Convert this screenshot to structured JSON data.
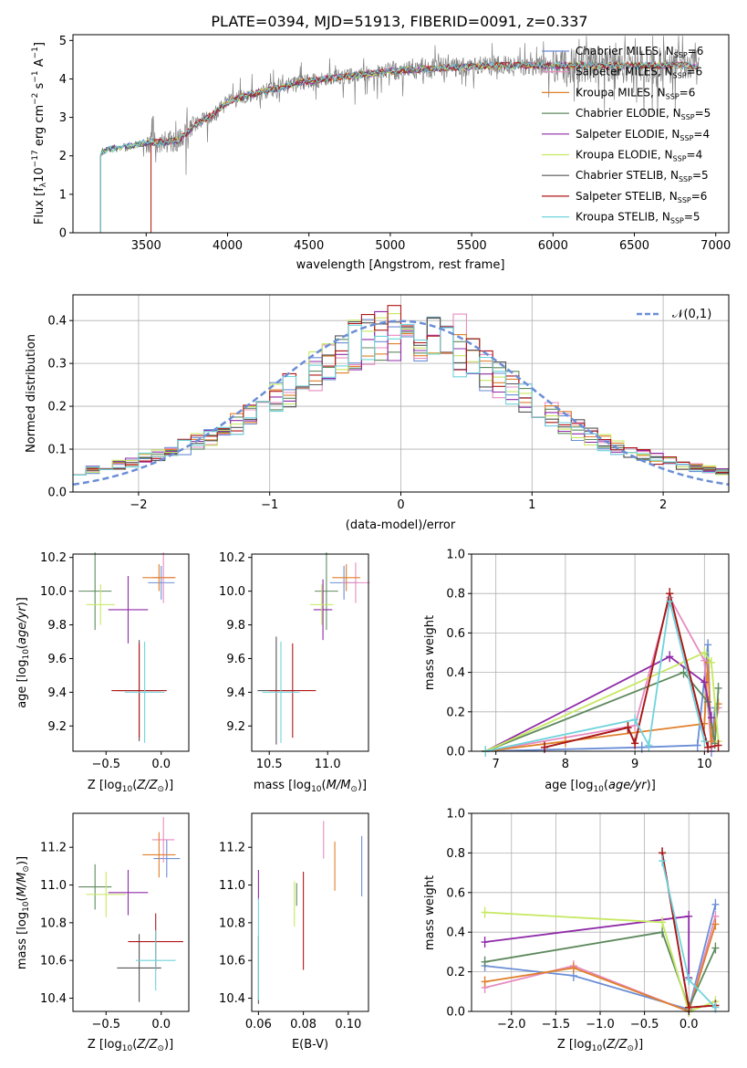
{
  "figure_title": "PLATE=0394, MJD=51913, FIBERID=0091, z=0.337",
  "models": [
    {
      "name": "Chabrier MILES",
      "nssp": "6",
      "color": "#6b8ed6"
    },
    {
      "name": "Salpeter MILES",
      "nssp": "6",
      "color": "#e88bc0"
    },
    {
      "name": "Kroupa MILES",
      "nssp": "6",
      "color": "#e07f2a"
    },
    {
      "name": "Chabrier ELODIE",
      "nssp": "5",
      "color": "#5e8a5e"
    },
    {
      "name": "Salpeter ELODIE",
      "nssp": "4",
      "color": "#8f2aa8"
    },
    {
      "name": "Kroupa ELODIE",
      "nssp": "4",
      "color": "#c6e860"
    },
    {
      "name": "Chabrier STELIB",
      "nssp": "5",
      "color": "#555555"
    },
    {
      "name": "Salpeter STELIB",
      "nssp": "6",
      "color": "#b01515"
    },
    {
      "name": "Kroupa STELIB",
      "nssp": "5",
      "color": "#6fd3dc"
    }
  ],
  "chart_data": [
    {
      "id": "spectrum",
      "type": "line",
      "xlabel": "wavelength [Angstrom, rest frame]",
      "ylabel": "Flux [f_λ 10^-17 erg cm^-2 s^-1 A^-1]",
      "xlim": [
        3050,
        7080
      ],
      "ylim": [
        0,
        5.15
      ],
      "xticks": [
        3500,
        4000,
        4500,
        5000,
        5500,
        6000,
        6500,
        7000
      ],
      "yticks": [
        0,
        1,
        2,
        3,
        4,
        5
      ],
      "data_color": "#808080",
      "continuum": {
        "x": [
          3220,
          3300,
          3400,
          3500,
          3600,
          3700,
          3800,
          3900,
          4000,
          4100,
          4200,
          4300,
          4400,
          4500,
          4600,
          4700,
          4800,
          4900,
          5000,
          5200,
          5400,
          5600,
          5800,
          6000,
          6200,
          6400,
          6600,
          6800,
          6900
        ],
        "y": [
          2.1,
          2.2,
          2.25,
          2.35,
          2.35,
          2.4,
          2.8,
          3.05,
          3.4,
          3.55,
          3.65,
          3.75,
          3.85,
          3.95,
          4.0,
          4.05,
          4.1,
          4.15,
          4.2,
          4.25,
          4.3,
          4.35,
          4.35,
          4.35,
          4.35,
          4.35,
          4.35,
          4.35,
          4.3
        ]
      },
      "legend_position": "upper right"
    },
    {
      "id": "residuals",
      "type": "histogram",
      "xlabel": "(data-model)/error",
      "ylabel": "Normed distribution",
      "xlim": [
        -2.5,
        2.5
      ],
      "ylim": [
        0,
        0.46
      ],
      "xticks": [
        -2,
        -1,
        0,
        1,
        2
      ],
      "yticks": [
        0.0,
        0.1,
        0.2,
        0.3,
        0.4
      ],
      "grid": true,
      "bin_edges_start": -2.5,
      "bin_width": 0.1,
      "reference": {
        "label": "𝒩(0,1)",
        "color": "#6b8ed6",
        "style": "dashed"
      },
      "legend_position": "upper right"
    },
    {
      "id": "age_vs_Z",
      "type": "errorbar",
      "xlabel": "Z [log10(Z/Z⊙)]",
      "ylabel": "age [log10(age/yr)]",
      "xlim": [
        -0.8,
        0.25
      ],
      "ylim": [
        9.05,
        10.22
      ],
      "xticks": [
        -0.5,
        0.0
      ],
      "yticks": [
        9.2,
        9.4,
        9.6,
        9.8,
        10.0,
        10.2
      ],
      "points": [
        {
          "model": 0,
          "x": 0.0,
          "y": 10.05,
          "xerr": 0.12,
          "yerr": 0.1
        },
        {
          "model": 1,
          "x": 0.02,
          "y": 10.08,
          "xerr": 0.1,
          "yerr": 0.15
        },
        {
          "model": 2,
          "x": -0.02,
          "y": 10.08,
          "xerr": 0.15,
          "yerr": 0.08
        },
        {
          "model": 3,
          "x": -0.6,
          "y": 10.0,
          "xerr": 0.15,
          "yerr": 0.23
        },
        {
          "model": 4,
          "x": -0.3,
          "y": 9.89,
          "xerr": 0.18,
          "yerr": 0.2
        },
        {
          "model": 5,
          "x": -0.55,
          "y": 9.92,
          "xerr": 0.13,
          "yerr": 0.12
        },
        {
          "model": 6,
          "x": -0.2,
          "y": 9.41,
          "xerr": 0.2,
          "yerr": 0.3
        },
        {
          "model": 7,
          "x": -0.2,
          "y": 9.41,
          "xerr": 0.25,
          "yerr": 0.28
        },
        {
          "model": 8,
          "x": -0.15,
          "y": 9.4,
          "xerr": 0.18,
          "yerr": 0.3
        }
      ]
    },
    {
      "id": "age_vs_mass",
      "type": "errorbar",
      "xlabel": "mass [log10(M/M⊙)]",
      "ylabel": "",
      "xlim": [
        10.35,
        11.35
      ],
      "ylim": [
        9.05,
        10.22
      ],
      "xticks": [
        10.5,
        11.0
      ],
      "yticks": [
        9.2,
        9.4,
        9.6,
        9.8,
        10.0,
        10.2
      ],
      "points": [
        {
          "model": 0,
          "x": 11.14,
          "y": 10.05,
          "xerr": 0.12,
          "yerr": 0.1
        },
        {
          "model": 1,
          "x": 11.24,
          "y": 10.05,
          "xerr": 0.12,
          "yerr": 0.12
        },
        {
          "model": 2,
          "x": 11.16,
          "y": 10.08,
          "xerr": 0.12,
          "yerr": 0.08
        },
        {
          "model": 3,
          "x": 10.99,
          "y": 10.0,
          "xerr": 0.1,
          "yerr": 0.23
        },
        {
          "model": 4,
          "x": 10.96,
          "y": 9.89,
          "xerr": 0.08,
          "yerr": 0.18
        },
        {
          "model": 5,
          "x": 10.95,
          "y": 9.92,
          "xerr": 0.1,
          "yerr": 0.12
        },
        {
          "model": 6,
          "x": 10.56,
          "y": 9.41,
          "xerr": 0.16,
          "yerr": 0.32
        },
        {
          "model": 7,
          "x": 10.7,
          "y": 9.41,
          "xerr": 0.2,
          "yerr": 0.28
        },
        {
          "model": 8,
          "x": 10.6,
          "y": 9.4,
          "xerr": 0.16,
          "yerr": 0.3
        }
      ]
    },
    {
      "id": "mass_weight_vs_age",
      "type": "line",
      "xlabel": "age [log10(age/yr)]",
      "ylabel": "mass weight",
      "xlim": [
        6.65,
        10.35
      ],
      "ylim": [
        0,
        1
      ],
      "xticks": [
        7,
        8,
        9,
        10
      ],
      "yticks": [
        0.0,
        0.2,
        0.4,
        0.6,
        0.8,
        1.0
      ],
      "grid": true,
      "series": [
        {
          "model": 0,
          "x": [
            6.85,
            9.1,
            9.9,
            10.05,
            10.1,
            10.15
          ],
          "y": [
            0.0,
            0.02,
            0.03,
            0.54,
            0.0,
            0.22
          ]
        },
        {
          "model": 1,
          "x": [
            6.85,
            9.0,
            9.5,
            10.0,
            10.1,
            10.2
          ],
          "y": [
            0.0,
            0.13,
            0.78,
            0.46,
            0.02,
            0.22
          ]
        },
        {
          "model": 2,
          "x": [
            6.85,
            8.0,
            10.0,
            10.05,
            10.1,
            10.2
          ],
          "y": [
            0.0,
            0.05,
            0.14,
            0.45,
            0.05,
            0.24
          ]
        },
        {
          "model": 3,
          "x": [
            6.85,
            9.7,
            10.05,
            10.15,
            10.2
          ],
          "y": [
            0.0,
            0.4,
            0.25,
            0.04,
            0.32
          ]
        },
        {
          "model": 4,
          "x": [
            6.85,
            9.5,
            10.0,
            10.1
          ],
          "y": [
            0.0,
            0.48,
            0.35,
            0.17
          ]
        },
        {
          "model": 5,
          "x": [
            6.85,
            10.0,
            10.1,
            10.2
          ],
          "y": [
            0.0,
            0.5,
            0.45,
            0.05
          ]
        },
        {
          "model": 6,
          "x": [
            7.7,
            8.9,
            9.0,
            9.5,
            10.05
          ],
          "y": [
            0.02,
            0.12,
            0.04,
            0.8,
            0.02
          ]
        },
        {
          "model": 7,
          "x": [
            7.7,
            8.9,
            9.0,
            9.5,
            10.05,
            10.2
          ],
          "y": [
            0.02,
            0.12,
            0.04,
            0.8,
            0.02,
            0.03
          ]
        },
        {
          "model": 8,
          "x": [
            6.85,
            9.0,
            9.2,
            9.5,
            10.0
          ],
          "y": [
            0.0,
            0.16,
            0.03,
            0.76,
            0.05
          ]
        }
      ]
    },
    {
      "id": "mass_vs_Z",
      "type": "errorbar",
      "xlabel": "Z [log10(Z/Z⊙)]",
      "ylabel": "mass [log10(M/M⊙)]",
      "xlim": [
        -0.8,
        0.25
      ],
      "ylim": [
        10.33,
        11.38
      ],
      "xticks": [
        -0.5,
        0.0
      ],
      "yticks": [
        10.4,
        10.6,
        10.8,
        11.0,
        11.2
      ],
      "points": [
        {
          "model": 0,
          "x": 0.05,
          "y": 11.14,
          "xerr": 0.12,
          "yerr": 0.1
        },
        {
          "model": 1,
          "x": 0.02,
          "y": 11.24,
          "xerr": 0.1,
          "yerr": 0.12
        },
        {
          "model": 2,
          "x": -0.02,
          "y": 11.16,
          "xerr": 0.15,
          "yerr": 0.12
        },
        {
          "model": 3,
          "x": -0.6,
          "y": 10.99,
          "xerr": 0.15,
          "yerr": 0.12
        },
        {
          "model": 4,
          "x": -0.3,
          "y": 10.96,
          "xerr": 0.18,
          "yerr": 0.12
        },
        {
          "model": 5,
          "x": -0.5,
          "y": 10.95,
          "xerr": 0.18,
          "yerr": 0.12
        },
        {
          "model": 6,
          "x": -0.2,
          "y": 10.56,
          "xerr": 0.2,
          "yerr": 0.18
        },
        {
          "model": 7,
          "x": -0.05,
          "y": 10.7,
          "xerr": 0.25,
          "yerr": 0.15
        },
        {
          "model": 8,
          "x": -0.05,
          "y": 10.6,
          "xerr": 0.18,
          "yerr": 0.16
        }
      ]
    },
    {
      "id": "mass_vs_ebv",
      "type": "errorbar",
      "xlabel": "E(B-V)",
      "ylabel": "",
      "xlim": [
        0.057,
        0.109
      ],
      "ylim": [
        10.33,
        11.38
      ],
      "xticks": [
        0.06,
        0.08,
        0.1
      ],
      "yticks": [
        10.4,
        10.6,
        10.8,
        11.0,
        11.2
      ],
      "points": [
        {
          "model": 0,
          "x": 0.106,
          "y": 11.1,
          "xerr": 0,
          "yerr": 0.16
        },
        {
          "model": 1,
          "x": 0.089,
          "y": 11.24,
          "xerr": 0,
          "yerr": 0.1
        },
        {
          "model": 2,
          "x": 0.094,
          "y": 11.1,
          "xerr": 0,
          "yerr": 0.13
        },
        {
          "model": 3,
          "x": 0.077,
          "y": 10.95,
          "xerr": 0,
          "yerr": 0.06
        },
        {
          "model": 4,
          "x": 0.06,
          "y": 11.0,
          "xerr": 0,
          "yerr": 0.08
        },
        {
          "model": 5,
          "x": 0.076,
          "y": 10.9,
          "xerr": 0,
          "yerr": 0.12
        },
        {
          "model": 6,
          "x": 0.06,
          "y": 10.55,
          "xerr": 0,
          "yerr": 0.18
        },
        {
          "model": 7,
          "x": 0.08,
          "y": 10.81,
          "xerr": 0,
          "yerr": 0.26
        },
        {
          "model": 8,
          "x": 0.06,
          "y": 10.66,
          "xerr": 0,
          "yerr": 0.27
        }
      ]
    },
    {
      "id": "mass_weight_vs_Z",
      "type": "line",
      "xlabel": "Z [log10(Z/Z⊙)]",
      "ylabel": "mass weight",
      "xlim": [
        -2.45,
        0.45
      ],
      "ylim": [
        0,
        1
      ],
      "xticks": [
        -2.0,
        -1.5,
        -1.0,
        -0.5,
        0.0
      ],
      "yticks": [
        0.0,
        0.2,
        0.4,
        0.6,
        0.8,
        1.0
      ],
      "grid": true,
      "series": [
        {
          "model": 0,
          "x": [
            -2.3,
            -1.3,
            0.0,
            0.3
          ],
          "y": [
            0.23,
            0.18,
            0.01,
            0.54
          ]
        },
        {
          "model": 1,
          "x": [
            -2.3,
            -1.3,
            0.0,
            0.3
          ],
          "y": [
            0.12,
            0.23,
            0.0,
            0.48
          ]
        },
        {
          "model": 2,
          "x": [
            -2.3,
            -1.3,
            0.0,
            0.3
          ],
          "y": [
            0.15,
            0.22,
            0.0,
            0.44
          ]
        },
        {
          "model": 3,
          "x": [
            -2.3,
            -0.3,
            0.0,
            0.3
          ],
          "y": [
            0.25,
            0.4,
            0.02,
            0.32
          ]
        },
        {
          "model": 4,
          "x": [
            -2.3,
            0.0,
            0.0
          ],
          "y": [
            0.35,
            0.48,
            0.17
          ]
        },
        {
          "model": 5,
          "x": [
            -2.3,
            -0.3,
            0.0,
            0.3
          ],
          "y": [
            0.5,
            0.45,
            0.0,
            0.05
          ]
        },
        {
          "model": 6,
          "x": [
            -0.3,
            0.0,
            0.3
          ],
          "y": [
            0.8,
            0.02,
            0.03
          ]
        },
        {
          "model": 7,
          "x": [
            -0.3,
            0.0,
            0.3
          ],
          "y": [
            0.8,
            0.02,
            0.03
          ]
        },
        {
          "model": 8,
          "x": [
            -0.3,
            0.0,
            0.3
          ],
          "y": [
            0.76,
            0.16,
            0.02
          ]
        }
      ]
    }
  ]
}
